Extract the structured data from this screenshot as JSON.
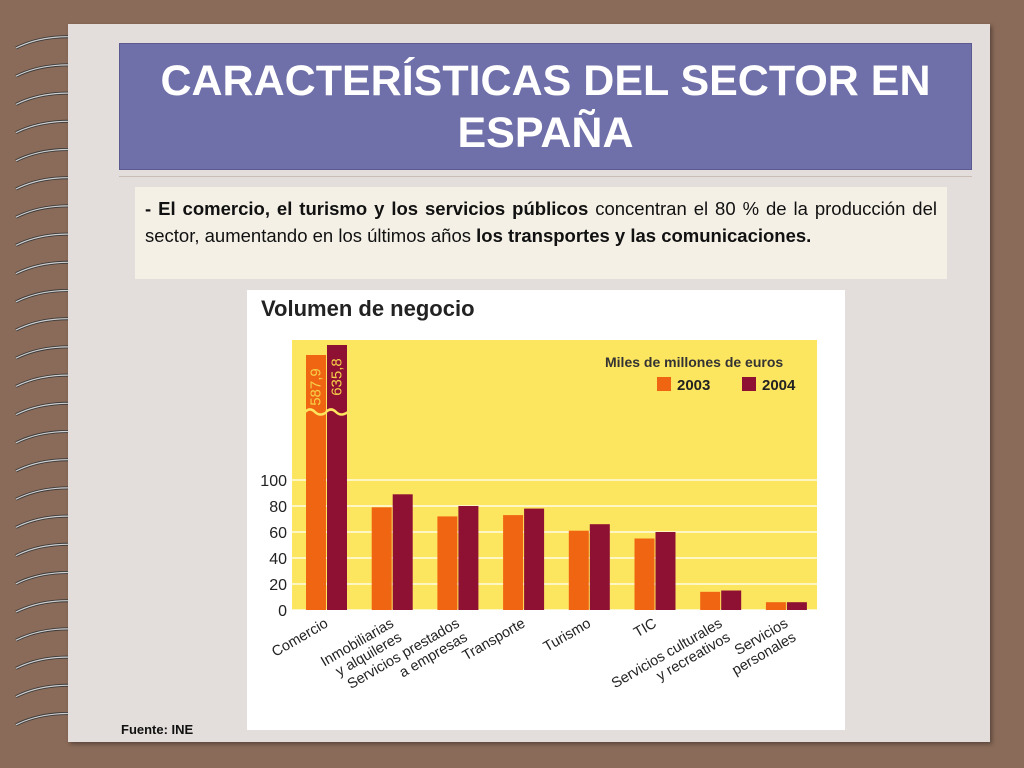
{
  "slide": {
    "title": "CARACTERÍSTICAS DEL SECTOR EN ESPAÑA",
    "paragraph": {
      "dash": "- ",
      "part1_bold": "El comercio, el turismo y los servicios públicos",
      "part2": " concentran el 80 % de la producción del sector, aumentando en los últimos años ",
      "part3_bold": "los transportes y las comunicaciones."
    },
    "source": "Fuente: INE"
  },
  "colors": {
    "background": "#8a6a58",
    "page": "#e3dedb",
    "title_box": "#6f6faa",
    "plot_bg": "#fde65f",
    "bar_2003": "#f06512",
    "bar_2004": "#8e1032"
  },
  "chart_data": {
    "type": "bar",
    "title": "Volumen de negocio",
    "unit_label": "Miles de millones de euros",
    "categories": [
      "Comercio",
      "Inmobiliarias y alquileres",
      "Servicios prestados a empresas",
      "Transporte",
      "Turismo",
      "TIC",
      "Servicios culturales y recreativos",
      "Servicios personales"
    ],
    "category_lines": [
      [
        "Comercio"
      ],
      [
        "Inmobiliarias",
        "y alquileres"
      ],
      [
        "Servicios prestados",
        "a empresas"
      ],
      [
        "Transporte"
      ],
      [
        "Turismo"
      ],
      [
        "TIC"
      ],
      [
        "Servicios culturales",
        "y recreativos"
      ],
      [
        "Servicios",
        "personales"
      ]
    ],
    "series": [
      {
        "name": "2003",
        "values": [
          587.9,
          79,
          72,
          73,
          61,
          55,
          14,
          6
        ]
      },
      {
        "name": "2004",
        "values": [
          635.8,
          89,
          80,
          78,
          66,
          60,
          15,
          6
        ]
      }
    ],
    "data_labels": [
      "587,9",
      "635,8"
    ],
    "yticks": [
      0,
      20,
      40,
      60,
      80,
      100
    ],
    "ylim": [
      0,
      100
    ],
    "axis_break": true,
    "legend_position": "top-right",
    "grid": true
  }
}
